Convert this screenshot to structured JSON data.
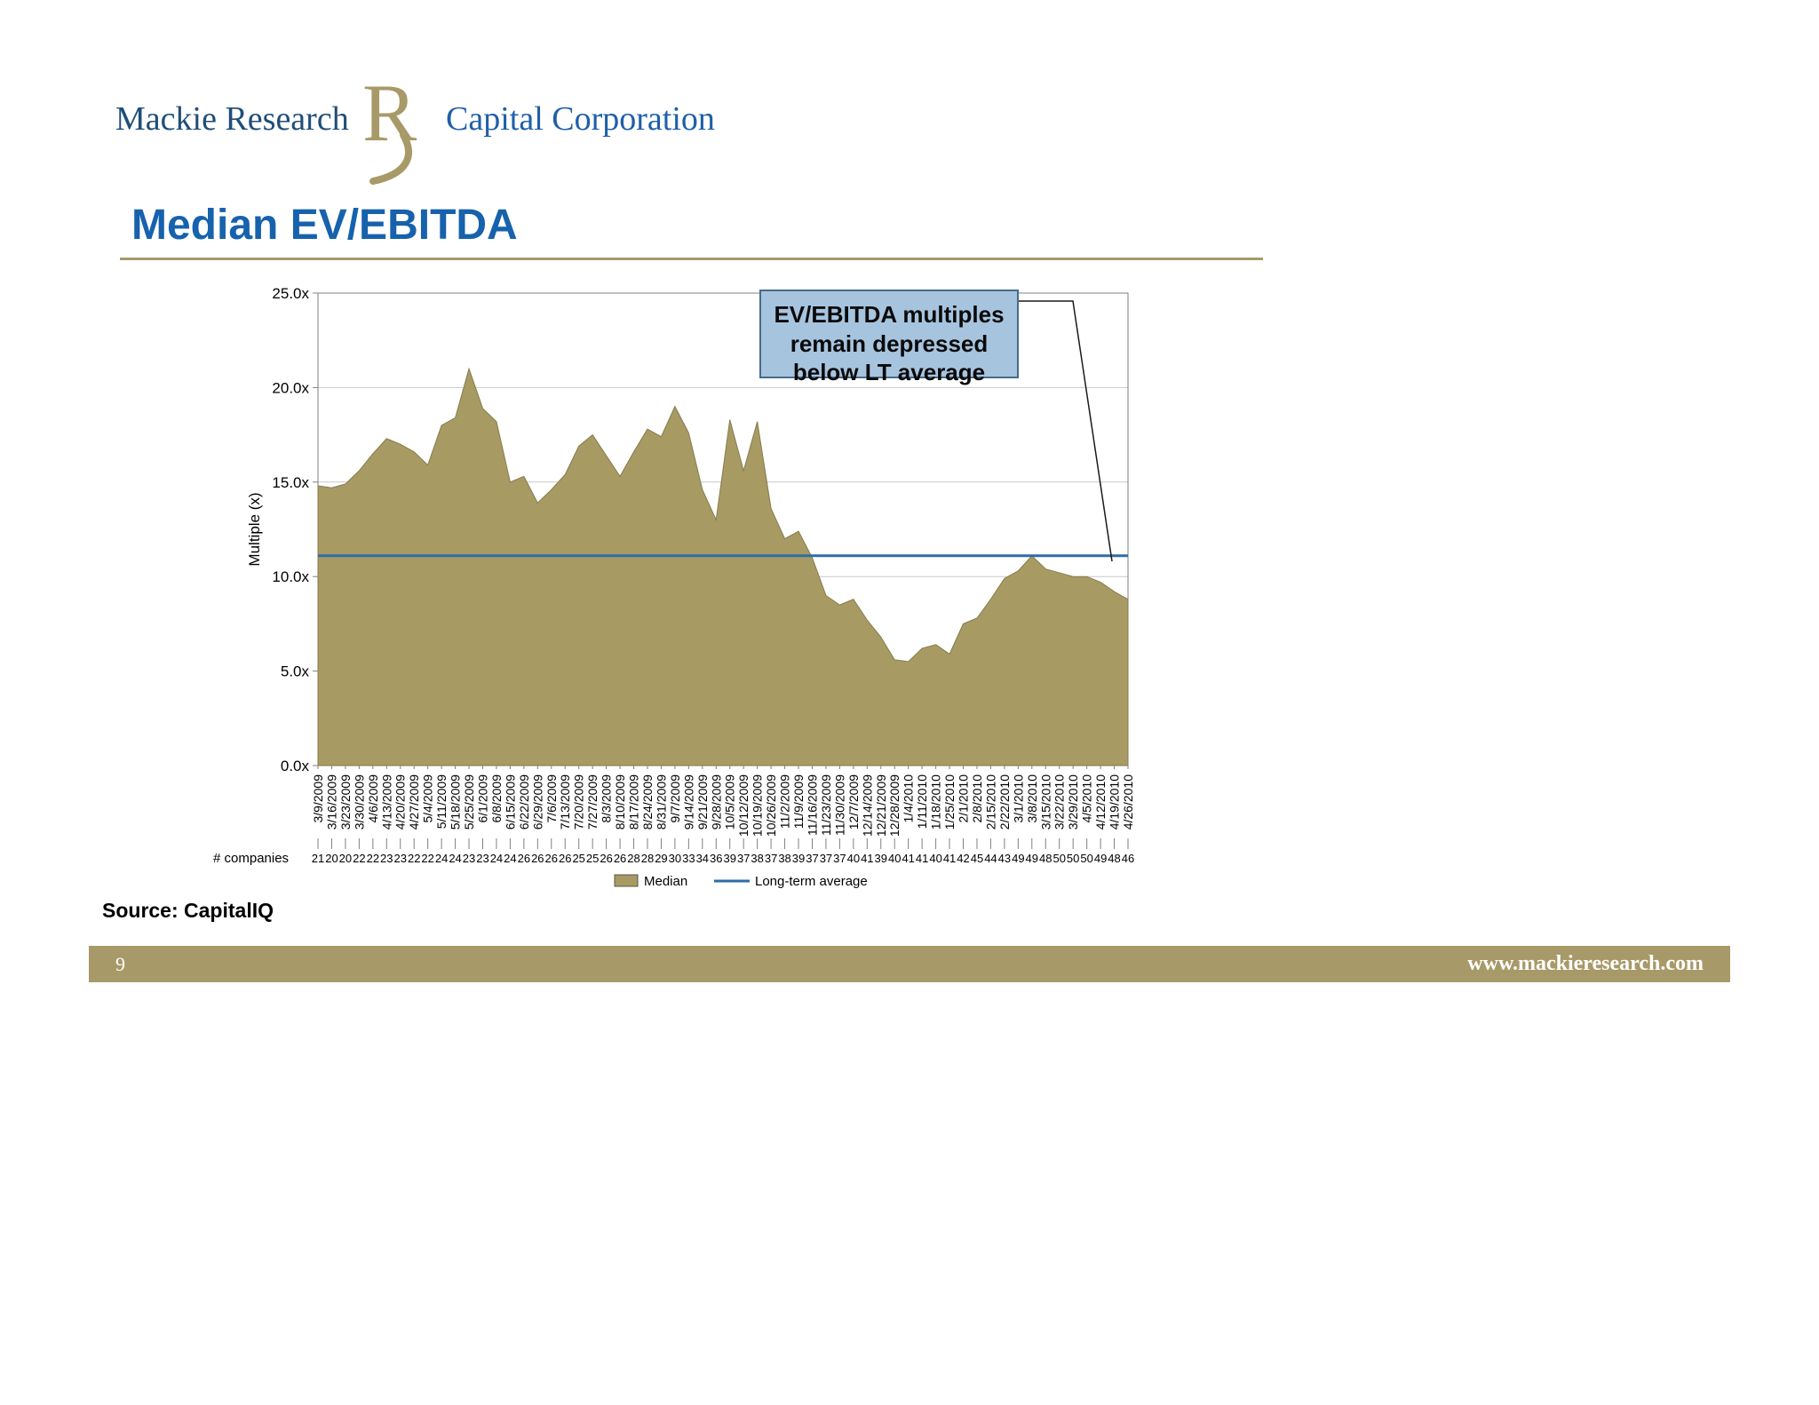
{
  "logo": {
    "part1": "Mackie Research",
    "r_letter": "R",
    "part2": "Capital Corporation"
  },
  "page": {
    "title": "Median EV/EBITDA",
    "source": "Source: CapitalIQ",
    "page_number": "9",
    "website": "www.mackieresearch.com"
  },
  "callout": {
    "text": "EV/EBITDA multiples\nremain depressed\nbelow LT average"
  },
  "chart_data": {
    "type": "area",
    "title": "",
    "xlabel": "",
    "ylabel": "Multiple (x)",
    "ylim": [
      0,
      25
    ],
    "ytick_step": 5,
    "ytick_labels": [
      "0.0x",
      "5.0x",
      "10.0x",
      "15.0x",
      "20.0x",
      "25.0x"
    ],
    "grid": true,
    "legend_position": "bottom",
    "categories": [
      "3/9/2009",
      "3/16/2009",
      "3/23/2009",
      "3/30/2009",
      "4/6/2009",
      "4/13/2009",
      "4/20/2009",
      "4/27/2009",
      "5/4/2009",
      "5/11/2009",
      "5/18/2009",
      "5/25/2009",
      "6/1/2009",
      "6/8/2009",
      "6/15/2009",
      "6/22/2009",
      "6/29/2009",
      "7/6/2009",
      "7/13/2009",
      "7/20/2009",
      "7/27/2009",
      "8/3/2009",
      "8/10/2009",
      "8/17/2009",
      "8/24/2009",
      "8/31/2009",
      "9/7/2009",
      "9/14/2009",
      "9/21/2009",
      "9/28/2009",
      "10/5/2009",
      "10/12/2009",
      "10/19/2009",
      "10/26/2009",
      "11/2/2009",
      "11/9/2009",
      "11/16/2009",
      "11/23/2009",
      "11/30/2009",
      "12/7/2009",
      "12/14/2009",
      "12/21/2009",
      "12/28/2009",
      "1/4/2010",
      "1/11/2010",
      "1/18/2010",
      "1/25/2010",
      "2/1/2010",
      "2/8/2010",
      "2/15/2010",
      "2/22/2010",
      "3/1/2010",
      "3/8/2010",
      "3/15/2010",
      "3/22/2010",
      "3/29/2010",
      "4/5/2010",
      "4/12/2010",
      "4/19/2010",
      "4/26/2010"
    ],
    "series": [
      {
        "name": "Median",
        "type": "area",
        "color": "#A79A63",
        "values": [
          14.8,
          14.7,
          14.9,
          15.6,
          16.5,
          17.3,
          17.0,
          16.6,
          15.9,
          18.0,
          18.4,
          21.0,
          18.9,
          18.2,
          15.0,
          15.3,
          13.9,
          14.6,
          15.4,
          16.9,
          17.5,
          16.4,
          15.3,
          16.6,
          17.8,
          17.4,
          19.0,
          17.6,
          14.6,
          13.0,
          18.3,
          15.6,
          18.2,
          13.6,
          12.0,
          12.4,
          11.0,
          9.0,
          8.5,
          8.8,
          7.7,
          6.8,
          5.6,
          5.5,
          6.2,
          6.4,
          5.9,
          7.5,
          7.8,
          8.8,
          9.9,
          10.3,
          11.1,
          10.4,
          10.2,
          10.0,
          10.0,
          9.7,
          9.2,
          8.8
        ]
      },
      {
        "name": "Long-term average",
        "type": "line",
        "color": "#2E6DA8",
        "value": 11.1
      }
    ],
    "companies_label": "# companies",
    "companies": [
      21,
      20,
      20,
      22,
      22,
      23,
      23,
      22,
      22,
      24,
      24,
      23,
      23,
      24,
      24,
      26,
      26,
      26,
      26,
      25,
      25,
      26,
      26,
      28,
      28,
      29,
      30,
      33,
      34,
      36,
      39,
      37,
      38,
      37,
      38,
      39,
      37,
      37,
      37,
      40,
      41,
      39,
      40,
      41,
      41,
      40,
      41,
      42,
      45,
      44,
      43,
      49,
      49,
      48,
      50,
      50,
      50,
      49,
      48,
      46
    ],
    "legend": [
      "Median",
      "Long-term average"
    ]
  }
}
